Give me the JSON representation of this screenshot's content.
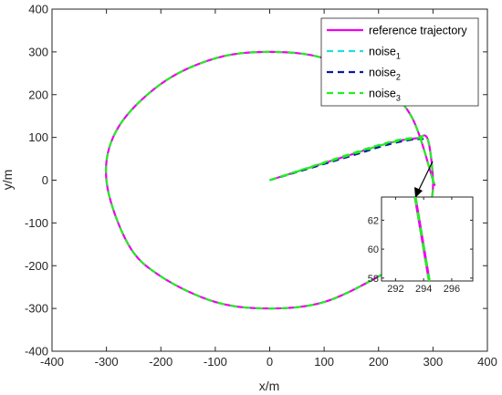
{
  "chart_data": {
    "type": "line",
    "xlabel": "x/m",
    "ylabel": "y/m",
    "xlim": [
      -400,
      400
    ],
    "ylim": [
      -400,
      400
    ],
    "xticks": [
      "-400",
      "-300",
      "-200",
      "-100",
      "0",
      "100",
      "200",
      "300",
      "400"
    ],
    "yticks": [
      "-400",
      "-300",
      "-200",
      "-100",
      "0",
      "100",
      "200",
      "300",
      "400"
    ],
    "grid": false,
    "legend_position": "top-right",
    "series": [
      {
        "name": "reference trajectory",
        "color": "#ee00ee",
        "style": "solid",
        "x": [
          0,
          150,
          200,
          240,
          270,
          290,
          300,
          295,
          280,
          250,
          200,
          100,
          0,
          -100,
          -200,
          -260,
          -300,
          -280,
          -200,
          -100,
          0,
          100,
          200,
          260,
          300,
          300
        ],
        "y": [
          0,
          60,
          80,
          93,
          98,
          97,
          0,
          -60,
          -120,
          -180,
          -225,
          -285,
          -300,
          -285,
          -225,
          -150,
          0,
          120,
          225,
          285,
          300,
          285,
          225,
          150,
          0,
          0
        ]
      },
      {
        "name": "noise",
        "sub": "1",
        "color": "#22dddd",
        "style": "dashed",
        "x": [
          0,
          150,
          200,
          240,
          270,
          290
        ],
        "y": [
          0,
          60,
          80,
          93,
          98,
          97
        ]
      },
      {
        "name": "noise",
        "sub": "2",
        "color": "#0a1a9a",
        "style": "dashed",
        "x": [
          0,
          150,
          200,
          240,
          270,
          290
        ],
        "y": [
          0,
          57,
          77,
          90,
          96,
          96
        ]
      },
      {
        "name": "noise",
        "sub": "3",
        "color": "#22ee22",
        "style": "dashed",
        "x": [
          0,
          150,
          200,
          240,
          270,
          290
        ],
        "y": [
          0,
          62,
          82,
          95,
          99,
          97
        ]
      }
    ],
    "inset": {
      "xlim": [
        291,
        297.5
      ],
      "ylim": [
        57.8,
        63.6
      ],
      "xticks": [
        "292",
        "294",
        "296"
      ],
      "yticks": [
        "58",
        "60",
        "62"
      ],
      "line": {
        "x": [
          293.4,
          294.4
        ],
        "y": [
          63.6,
          57.8
        ]
      }
    }
  }
}
